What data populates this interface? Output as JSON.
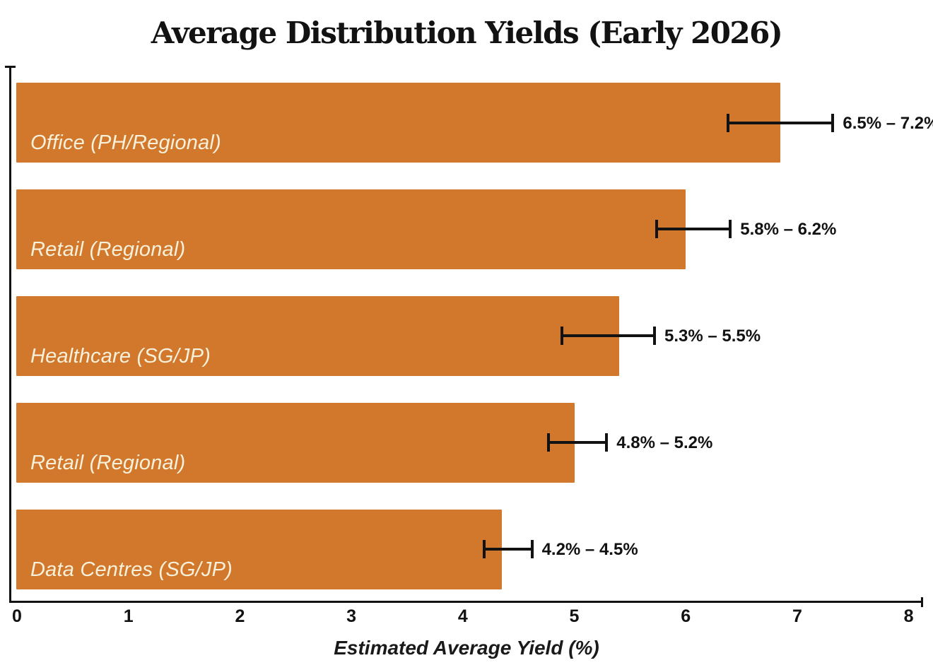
{
  "title": "Average Distribution Yields (Early 2026)",
  "x_axis": {
    "label": "Estimated Average Yield (%)",
    "ticks": [
      0,
      1,
      2,
      3,
      4,
      5,
      6,
      7,
      8
    ]
  },
  "colors": {
    "bar_fill": "#D2782C",
    "bar_label_text": "#F7F1DB",
    "axis_and_text": "#121212",
    "background": "#FFFFFF"
  },
  "chart_data": {
    "type": "bar",
    "orientation": "horizontal",
    "title": "Average Distribution Yields (Early 2026)",
    "xlabel": "Estimated Average Yield (%)",
    "ylabel": "",
    "xlim": [
      0,
      8
    ],
    "x_ticks": [
      0,
      1,
      2,
      3,
      4,
      5,
      6,
      7,
      8
    ],
    "grid": false,
    "legend": "none",
    "bar_color": "#D2782C",
    "categories": [
      "Office (PH/Regional)",
      "Retail (Regional)",
      "Healthcare (SG/JP)",
      "Retail (Regional)",
      "Data Centres (SG/JP)"
    ],
    "values": [
      6.85,
      6.0,
      5.4,
      5.0,
      4.35
    ],
    "bars": [
      {
        "category": "Office (PH/Regional)",
        "value": 6.85,
        "range_low": 6.5,
        "range_high": 7.2,
        "range_label": "6.5% – 7.2%",
        "errorbar_drawn": [
          6.38,
          7.32
        ]
      },
      {
        "category": "Retail (Regional)",
        "value": 6.0,
        "range_low": 5.8,
        "range_high": 6.2,
        "range_label": "5.8% – 6.2%",
        "errorbar_drawn": [
          5.74,
          6.4
        ]
      },
      {
        "category": "Healthcare (SG/JP)",
        "value": 5.4,
        "range_low": 5.3,
        "range_high": 5.5,
        "range_label": "5.3% – 5.5%",
        "errorbar_drawn": [
          4.89,
          5.72
        ]
      },
      {
        "category": "Retail (Regional)",
        "value": 5.0,
        "range_low": 4.8,
        "range_high": 5.2,
        "range_label": "4.8% – 5.2%",
        "errorbar_drawn": [
          4.77,
          5.29
        ]
      },
      {
        "category": "Data Centres (SG/JP)",
        "value": 4.35,
        "range_low": 4.2,
        "range_high": 4.5,
        "range_label": "4.2% – 4.5%",
        "errorbar_drawn": [
          4.19,
          4.62
        ]
      }
    ]
  }
}
